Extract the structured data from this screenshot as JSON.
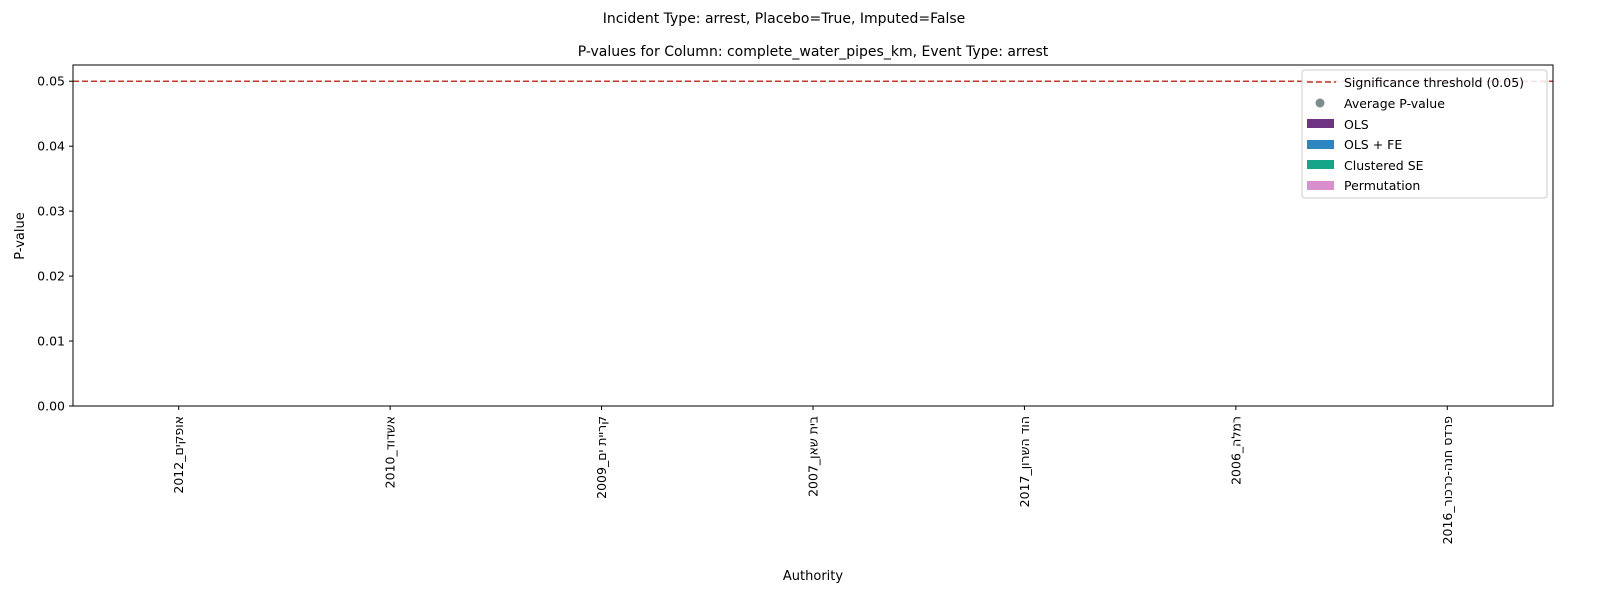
{
  "figure": {
    "suptitle": "Incident Type: arrest, Placebo=True, Imputed=False"
  },
  "chart_data": {
    "type": "bar",
    "title": "P-values for Column: complete_water_pipes_km, Event Type: arrest",
    "xlabel": "Authority",
    "ylabel": "P-value",
    "categories": [
      "אופקים_2012",
      "אשדוד_2010",
      "קריית ים_2009",
      "בית שאן_2007",
      "הוד השרון_2017",
      "רמלה_2006",
      "פרדס חנה-כרכור_2016"
    ],
    "ylim": [
      0,
      0.0525
    ],
    "yticks": [
      "0.00",
      "0.01",
      "0.02",
      "0.03",
      "0.04",
      "0.05"
    ],
    "ytick_values": [
      0,
      0.01,
      0.02,
      0.03,
      0.04,
      0.05
    ],
    "series": [
      {
        "name": "OLS",
        "color": "#6c3483",
        "values": [
          0,
          0,
          0,
          0,
          0,
          0,
          0
        ]
      },
      {
        "name": "OLS + FE",
        "color": "#2e86c1",
        "values": [
          0,
          0,
          0,
          0,
          0,
          0,
          0
        ]
      },
      {
        "name": "Clustered SE",
        "color": "#17a589",
        "values": [
          0,
          0,
          0,
          0,
          0,
          0,
          0
        ]
      },
      {
        "name": "Permutation",
        "color": "#d98ecd",
        "values": [
          0,
          0,
          0,
          0,
          0,
          0,
          0
        ]
      }
    ],
    "average": {
      "name": "Average P-value",
      "color": "#7f8c8d",
      "values": [
        0,
        0,
        0,
        0,
        0,
        0,
        0
      ]
    },
    "threshold": {
      "name": "Significance threshold (0.05)",
      "value": 0.05,
      "color": "#c0392b"
    },
    "legend_order": [
      "threshold",
      "average",
      "OLS",
      "OLS + FE",
      "Clustered SE",
      "Permutation"
    ],
    "legend_placement": "top-right",
    "grid": false
  }
}
